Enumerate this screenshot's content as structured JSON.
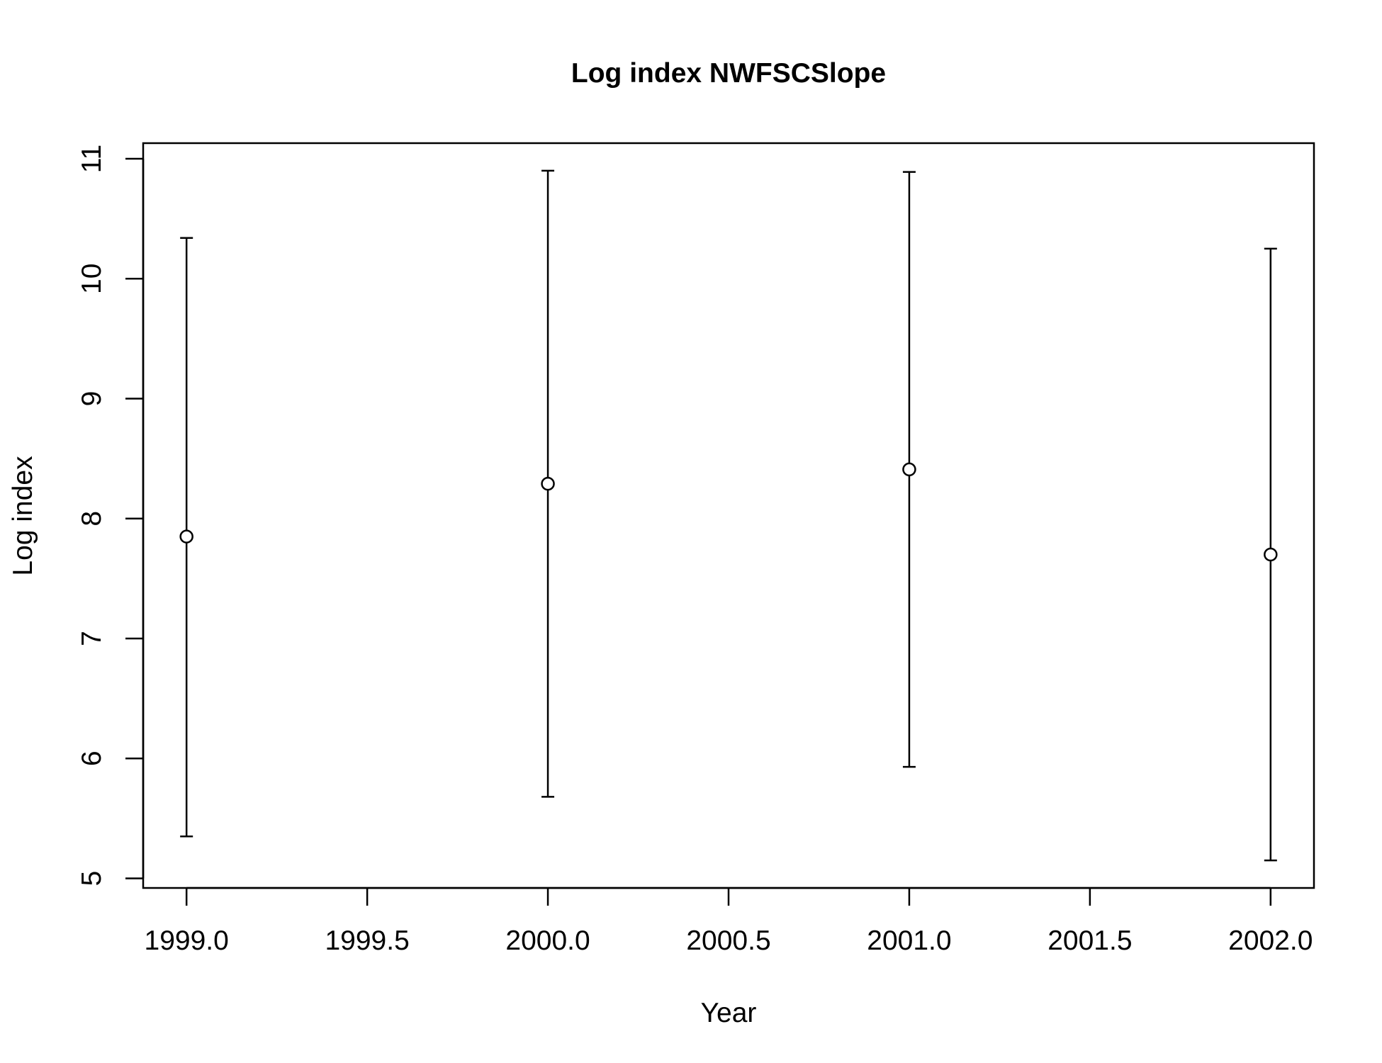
{
  "chart_data": {
    "type": "scatter",
    "title": "Log index NWFSCSlope",
    "xlabel": "Year",
    "ylabel": "Log index",
    "xlim": [
      1998.88,
      2002.12
    ],
    "ylim": [
      4.92,
      11.13
    ],
    "x_ticks": [
      1999.0,
      1999.5,
      2000.0,
      2000.5,
      2001.0,
      2001.5,
      2002.0
    ],
    "x_tick_labels": [
      "1999.0",
      "1999.5",
      "2000.0",
      "2000.5",
      "2001.0",
      "2001.5",
      "2002.0"
    ],
    "y_ticks": [
      5,
      6,
      7,
      8,
      9,
      10,
      11
    ],
    "y_tick_labels": [
      "5",
      "6",
      "7",
      "8",
      "9",
      "10",
      "11"
    ],
    "grid": false,
    "legend": "none",
    "series": [
      {
        "x": [
          1999,
          2000,
          2001,
          2002
        ],
        "y": [
          7.85,
          8.29,
          8.41,
          7.7
        ],
        "lower": [
          5.35,
          5.68,
          5.93,
          5.15
        ],
        "upper": [
          10.34,
          10.9,
          10.89,
          10.25
        ]
      }
    ],
    "colors": {
      "line": "#000000",
      "marker_fill": "#ffffff"
    }
  }
}
